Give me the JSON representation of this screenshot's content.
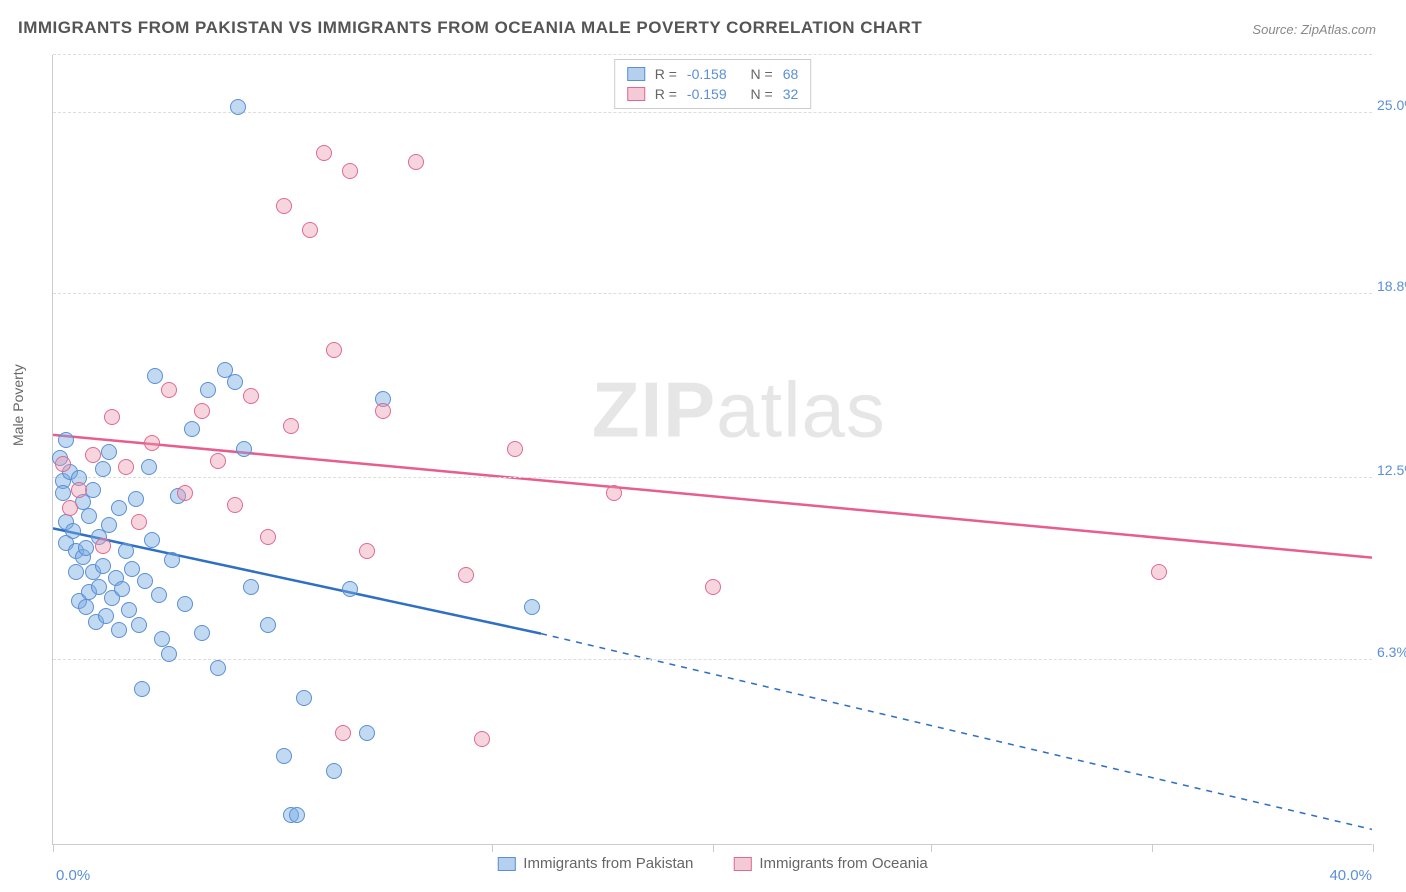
{
  "chart": {
    "type": "scatter",
    "title": "IMMIGRANTS FROM PAKISTAN VS IMMIGRANTS FROM OCEANIA MALE POVERTY CORRELATION CHART",
    "source_label": "Source:",
    "source_value": "ZipAtlas.com",
    "y_axis_title": "Male Poverty",
    "watermark": {
      "bold": "ZIP",
      "light": "atlas"
    },
    "background_color": "#ffffff",
    "grid_color": "#dddddd",
    "axis_color": "#cccccc",
    "label_color": "#5b8fd6",
    "xlim": [
      0,
      40
    ],
    "ylim": [
      0,
      27
    ],
    "y_gridlines": [
      6.3,
      12.5,
      18.8,
      25.0
    ],
    "y_tick_labels": [
      "6.3%",
      "12.5%",
      "18.8%",
      "25.0%"
    ],
    "x_tick_positions": [
      0,
      13.3,
      20,
      26.6,
      33.3,
      40
    ],
    "x_min_label": "0.0%",
    "x_max_label": "40.0%",
    "legend_top": [
      {
        "swatch": "a",
        "r_label": "R =",
        "r_value": "-0.158",
        "n_label": "N =",
        "n_value": "68"
      },
      {
        "swatch": "b",
        "r_label": "R =",
        "r_value": "-0.159",
        "n_label": "N =",
        "n_value": "32"
      }
    ],
    "legend_bottom": [
      {
        "swatch": "a",
        "label": "Immigrants from Pakistan"
      },
      {
        "swatch": "b",
        "label": "Immigrants from Oceania"
      }
    ],
    "series": [
      {
        "id": "a",
        "name": "Immigrants from Pakistan",
        "color_fill": "rgba(120,170,226,0.45)",
        "color_stroke": "#5b8fd6",
        "trend": {
          "x1": 0,
          "y1": 10.8,
          "x2": 14.8,
          "y2": 7.2,
          "dash_x2": 40,
          "dash_y2": 0.5,
          "color": "#2f6fc4"
        },
        "points": [
          [
            0.2,
            13.2
          ],
          [
            0.3,
            12.4
          ],
          [
            0.3,
            12.0
          ],
          [
            0.4,
            11.0
          ],
          [
            0.4,
            10.3
          ],
          [
            0.4,
            13.8
          ],
          [
            0.5,
            12.7
          ],
          [
            0.6,
            10.7
          ],
          [
            0.7,
            9.3
          ],
          [
            0.7,
            10.0
          ],
          [
            0.8,
            8.3
          ],
          [
            0.8,
            12.5
          ],
          [
            0.9,
            9.8
          ],
          [
            0.9,
            11.7
          ],
          [
            1.0,
            10.1
          ],
          [
            1.0,
            8.1
          ],
          [
            1.1,
            11.2
          ],
          [
            1.1,
            8.6
          ],
          [
            1.2,
            9.3
          ],
          [
            1.2,
            12.1
          ],
          [
            1.3,
            7.6
          ],
          [
            1.4,
            10.5
          ],
          [
            1.4,
            8.8
          ],
          [
            1.5,
            12.8
          ],
          [
            1.5,
            9.5
          ],
          [
            1.6,
            7.8
          ],
          [
            1.7,
            10.9
          ],
          [
            1.7,
            13.4
          ],
          [
            1.8,
            8.4
          ],
          [
            1.9,
            9.1
          ],
          [
            2.0,
            11.5
          ],
          [
            2.0,
            7.3
          ],
          [
            2.1,
            8.7
          ],
          [
            2.2,
            10.0
          ],
          [
            2.3,
            8.0
          ],
          [
            2.4,
            9.4
          ],
          [
            2.5,
            11.8
          ],
          [
            2.6,
            7.5
          ],
          [
            2.7,
            5.3
          ],
          [
            2.8,
            9.0
          ],
          [
            2.9,
            12.9
          ],
          [
            3.0,
            10.4
          ],
          [
            3.1,
            16.0
          ],
          [
            3.2,
            8.5
          ],
          [
            3.3,
            7.0
          ],
          [
            3.5,
            6.5
          ],
          [
            3.6,
            9.7
          ],
          [
            3.8,
            11.9
          ],
          [
            4.0,
            8.2
          ],
          [
            4.2,
            14.2
          ],
          [
            4.5,
            7.2
          ],
          [
            4.7,
            15.5
          ],
          [
            5.0,
            6.0
          ],
          [
            5.2,
            16.2
          ],
          [
            5.5,
            15.8
          ],
          [
            5.6,
            25.2
          ],
          [
            5.8,
            13.5
          ],
          [
            6.0,
            8.8
          ],
          [
            6.5,
            7.5
          ],
          [
            7.0,
            3.0
          ],
          [
            7.2,
            1.0
          ],
          [
            7.4,
            1.0
          ],
          [
            7.6,
            5.0
          ],
          [
            8.5,
            2.5
          ],
          [
            9.0,
            8.7
          ],
          [
            9.5,
            3.8
          ],
          [
            10.0,
            15.2
          ],
          [
            14.5,
            8.1
          ]
        ]
      },
      {
        "id": "b",
        "name": "Immigrants from Oceania",
        "color_fill": "rgba(235,150,175,0.40)",
        "color_stroke": "#e06a8f",
        "trend": {
          "x1": 0,
          "y1": 14.0,
          "x2": 40,
          "y2": 9.8,
          "color": "#e75d8f"
        },
        "points": [
          [
            0.3,
            13.0
          ],
          [
            0.5,
            11.5
          ],
          [
            0.8,
            12.1
          ],
          [
            1.2,
            13.3
          ],
          [
            1.5,
            10.2
          ],
          [
            1.8,
            14.6
          ],
          [
            2.2,
            12.9
          ],
          [
            2.6,
            11.0
          ],
          [
            3.0,
            13.7
          ],
          [
            3.5,
            15.5
          ],
          [
            4.0,
            12.0
          ],
          [
            4.5,
            14.8
          ],
          [
            5.0,
            13.1
          ],
          [
            5.5,
            11.6
          ],
          [
            6.0,
            15.3
          ],
          [
            6.5,
            10.5
          ],
          [
            7.0,
            21.8
          ],
          [
            7.2,
            14.3
          ],
          [
            7.8,
            21.0
          ],
          [
            8.2,
            23.6
          ],
          [
            8.5,
            16.9
          ],
          [
            8.8,
            3.8
          ],
          [
            9.0,
            23.0
          ],
          [
            9.5,
            10.0
          ],
          [
            10.0,
            14.8
          ],
          [
            11.0,
            23.3
          ],
          [
            12.5,
            9.2
          ],
          [
            13.0,
            3.6
          ],
          [
            14.0,
            13.5
          ],
          [
            17.0,
            12.0
          ],
          [
            20.0,
            8.8
          ],
          [
            33.5,
            9.3
          ]
        ]
      }
    ]
  }
}
